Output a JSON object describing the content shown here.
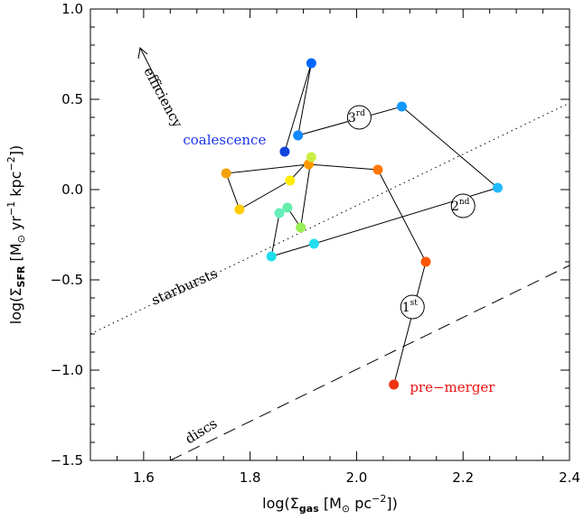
{
  "chart_data": {
    "type": "scatter",
    "xlim": [
      1.5,
      2.4
    ],
    "ylim": [
      -1.5,
      1.0
    ],
    "x_ticks": [
      1.6,
      1.8,
      2.0,
      2.2,
      2.4
    ],
    "x_tick_labels": [
      "1.6",
      "1.8",
      "2.0",
      "2.2",
      "2.4"
    ],
    "y_ticks": [
      -1.5,
      -1.0,
      -0.5,
      0.0,
      0.5,
      1.0
    ],
    "y_tick_labels": [
      "−1.5",
      "−1.0",
      "−0.5",
      "0.0",
      "0.5",
      "1.0"
    ],
    "grid": false,
    "xlabel": {
      "pre": "log(Σ",
      "sub": "gas",
      "mid": " [M",
      "sun_sub": "⊙",
      "post": " pc",
      "sup": "−2",
      "end": "])"
    },
    "ylabel": {
      "pre": "log(Σ",
      "sub": "SFR",
      "mid": " [M",
      "sun_sub": "⊙",
      "post1": " yr",
      "sup1": "−1",
      "post2": " kpc",
      "sup2": "−2",
      "end": "])"
    },
    "reference_lines": [
      {
        "name": "starbursts",
        "style": "dotted",
        "x": [
          1.5,
          2.4
        ],
        "y": [
          -0.8,
          0.48
        ]
      },
      {
        "name": "discs",
        "style": "dashed",
        "x": [
          1.65,
          2.4
        ],
        "y": [
          -1.5,
          -0.42
        ]
      }
    ],
    "trajectory": [
      {
        "x": 2.07,
        "y": -1.08,
        "color": "#ee3311"
      },
      {
        "x": 2.13,
        "y": -0.4,
        "color": "#ff5500"
      },
      {
        "x": 2.04,
        "y": 0.11,
        "color": "#ff7700"
      },
      {
        "x": 1.91,
        "y": 0.14,
        "color": "#ff9900"
      },
      {
        "x": 1.755,
        "y": 0.09,
        "color": "#f5a000"
      },
      {
        "x": 1.78,
        "y": -0.11,
        "color": "#ffcc00"
      },
      {
        "x": 1.875,
        "y": 0.05,
        "color": "#ffee00"
      },
      {
        "x": 1.915,
        "y": 0.18,
        "color": "#ccee44"
      },
      {
        "x": 1.895,
        "y": -0.21,
        "color": "#99ee55"
      },
      {
        "x": 1.87,
        "y": -0.1,
        "color": "#66eeaa"
      },
      {
        "x": 1.855,
        "y": -0.13,
        "color": "#66eebb"
      },
      {
        "x": 1.84,
        "y": -0.37,
        "color": "#22ddee"
      },
      {
        "x": 1.92,
        "y": -0.3,
        "color": "#22ddee"
      },
      {
        "x": 2.265,
        "y": 0.01,
        "color": "#22bbff"
      },
      {
        "x": 2.085,
        "y": 0.46,
        "color": "#1199ff"
      },
      {
        "x": 1.89,
        "y": 0.3,
        "color": "#1188ff"
      },
      {
        "x": 1.915,
        "y": 0.7,
        "color": "#0066ff"
      },
      {
        "x": 1.865,
        "y": 0.21,
        "color": "#1144dd"
      }
    ],
    "passage_markers": [
      {
        "num": "1",
        "sup": "st",
        "x": 2.105,
        "y": -0.65
      },
      {
        "num": "2",
        "sup": "nd",
        "x": 2.2,
        "y": -0.09
      },
      {
        "num": "3",
        "sup": "rd",
        "x": 2.005,
        "y": 0.4
      }
    ],
    "annotations": [
      {
        "name": "coalescence",
        "text": "coalescence",
        "x": 1.83,
        "y": 0.25,
        "color": "#1a33ee"
      },
      {
        "name": "pre-merger",
        "text": "pre−merger",
        "x": 2.1,
        "y": -1.12,
        "color": "#ee1111"
      },
      {
        "name": "starbursts",
        "text": "starbursts",
        "x": 1.62,
        "y": -0.64,
        "color": "#000000"
      },
      {
        "name": "discs",
        "text": "discs",
        "x": 1.685,
        "y": -1.41,
        "color": "#000000"
      },
      {
        "name": "efficiency",
        "text": "efficiency",
        "x": 1.6,
        "y": 0.66,
        "color": "#000000"
      }
    ]
  }
}
